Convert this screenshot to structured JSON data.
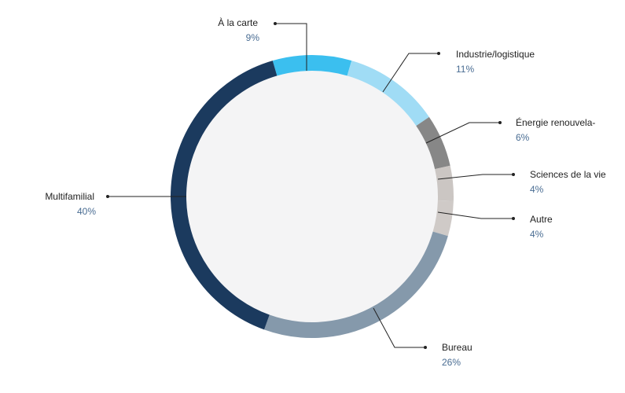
{
  "chart_data": {
    "type": "donut",
    "categories": [
      "À la carte",
      "Industrie/logistique",
      "Énergie renouvela-",
      "Sciences de la vie",
      "Autre",
      "Bureau",
      "Multifamilial"
    ],
    "values": [
      9,
      11,
      6,
      4,
      4,
      26,
      40
    ],
    "value_labels": [
      "9%",
      "11%",
      "6%",
      "4%",
      "4%",
      "26%",
      "40%"
    ],
    "colors": [
      "#3bbfef",
      "#a0dcf5",
      "#878787",
      "#cbc6c3",
      "#cfcac7",
      "#8599ab",
      "#1b3a5e"
    ]
  }
}
